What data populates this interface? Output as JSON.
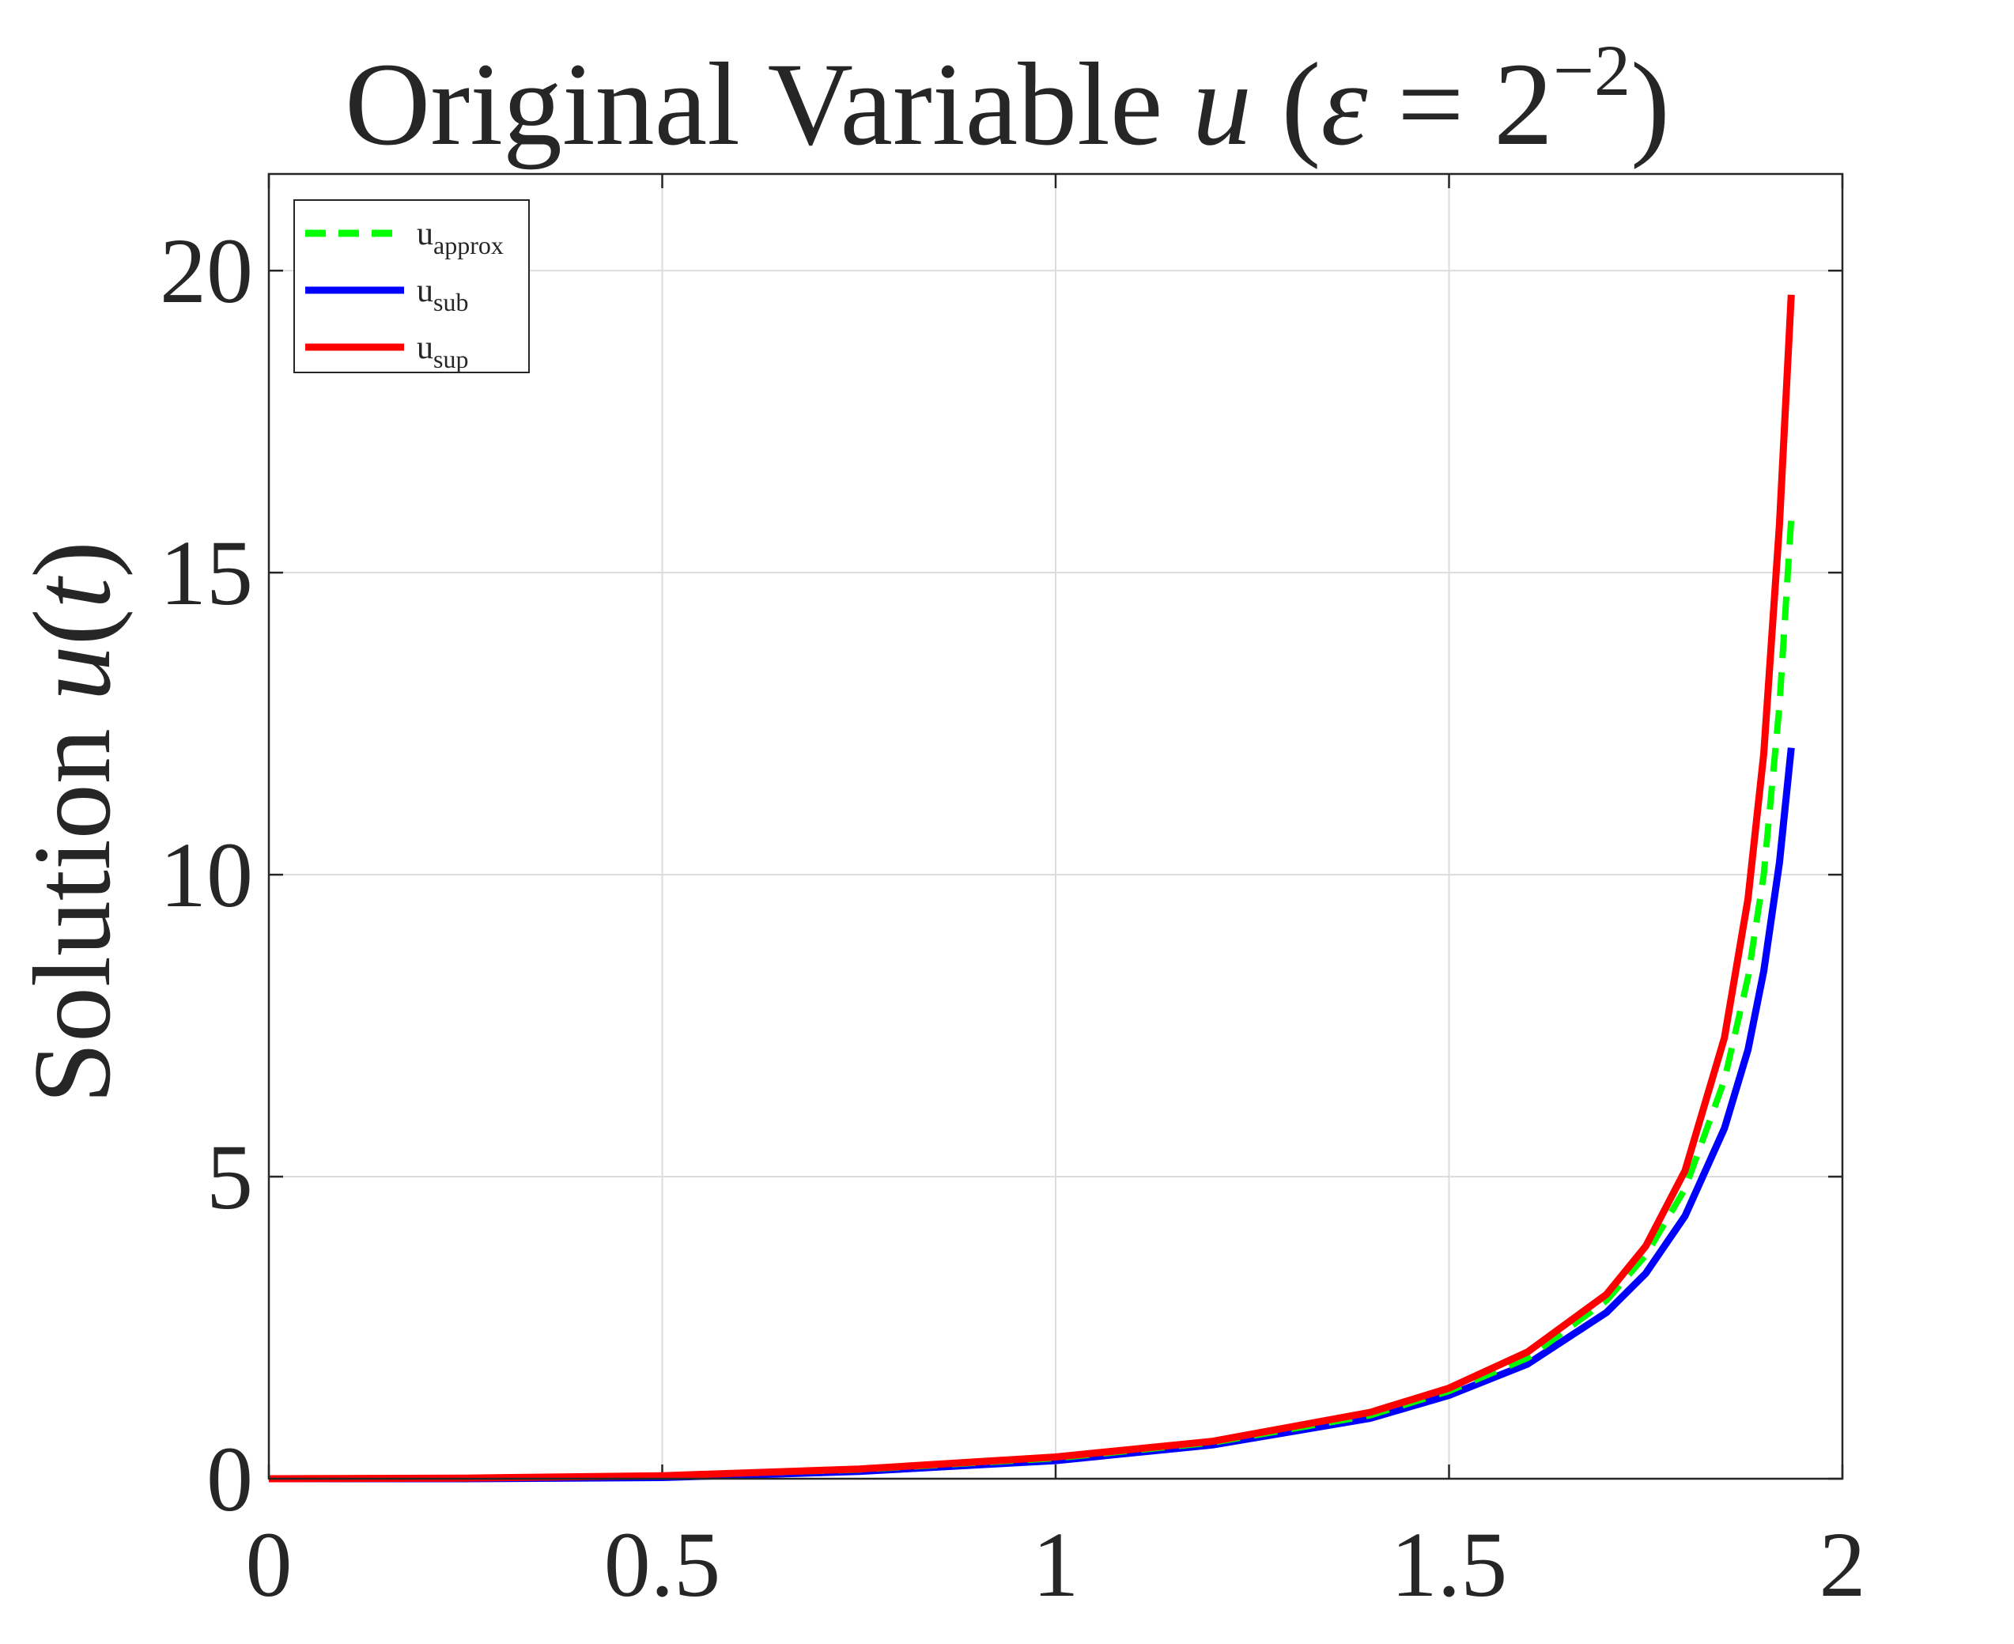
{
  "chart_data": {
    "type": "line",
    "title_parts": {
      "prefix": "Original Variable ",
      "var": "u",
      "open": " (",
      "eps": "ε",
      "eq": " = 2",
      "exp": "−2",
      "close": ")"
    },
    "ylabel_parts": {
      "prefix": "Solution ",
      "var": "u",
      "open": "(",
      "arg": "t",
      "close": ")"
    },
    "xlabel": "",
    "xlim": [
      0,
      2
    ],
    "ylim": [
      0,
      21.6
    ],
    "xticks": [
      0,
      0.5,
      1,
      1.5,
      2
    ],
    "xtick_labels": [
      "0",
      "0.5",
      "1",
      "1.5",
      "2"
    ],
    "yticks": [
      0,
      5,
      10,
      15,
      20
    ],
    "ytick_labels": [
      "0",
      "5",
      "10",
      "15",
      "20"
    ],
    "grid": true,
    "legend_position": "top-left",
    "series": [
      {
        "name": "u_approx",
        "label_base": "u",
        "label_sub": "approx",
        "color": "#00ff00",
        "style": "dashed",
        "x": [
          0,
          0.25,
          0.5,
          0.75,
          1.0,
          1.2,
          1.4,
          1.5,
          1.6,
          1.7,
          1.75,
          1.8,
          1.85,
          1.88,
          1.9,
          1.92,
          1.935
        ],
        "y": [
          0,
          0.01,
          0.05,
          0.15,
          0.34,
          0.6,
          1.05,
          1.45,
          2.0,
          2.95,
          3.7,
          4.8,
          6.6,
          8.3,
          10.0,
          12.8,
          15.9
        ]
      },
      {
        "name": "u_sub",
        "label_base": "u",
        "label_sub": "sub",
        "color": "#0000ff",
        "style": "solid",
        "x": [
          0,
          0.25,
          0.5,
          0.75,
          1.0,
          1.2,
          1.4,
          1.5,
          1.6,
          1.7,
          1.75,
          1.8,
          1.85,
          1.88,
          1.9,
          1.92,
          1.935
        ],
        "y": [
          0,
          0.0,
          0.02,
          0.12,
          0.3,
          0.56,
          1.0,
          1.38,
          1.9,
          2.75,
          3.4,
          4.35,
          5.8,
          7.1,
          8.4,
          10.2,
          12.1
        ]
      },
      {
        "name": "u_sup",
        "label_base": "u",
        "label_sub": "sup",
        "color": "#ff0000",
        "style": "solid",
        "x": [
          0,
          0.25,
          0.5,
          0.75,
          1.0,
          1.2,
          1.4,
          1.5,
          1.6,
          1.7,
          1.75,
          1.8,
          1.85,
          1.88,
          1.9,
          1.92,
          1.935
        ],
        "y": [
          0,
          0.01,
          0.05,
          0.16,
          0.36,
          0.62,
          1.1,
          1.5,
          2.1,
          3.05,
          3.85,
          5.1,
          7.3,
          9.6,
          12.0,
          15.8,
          19.6
        ]
      }
    ]
  }
}
